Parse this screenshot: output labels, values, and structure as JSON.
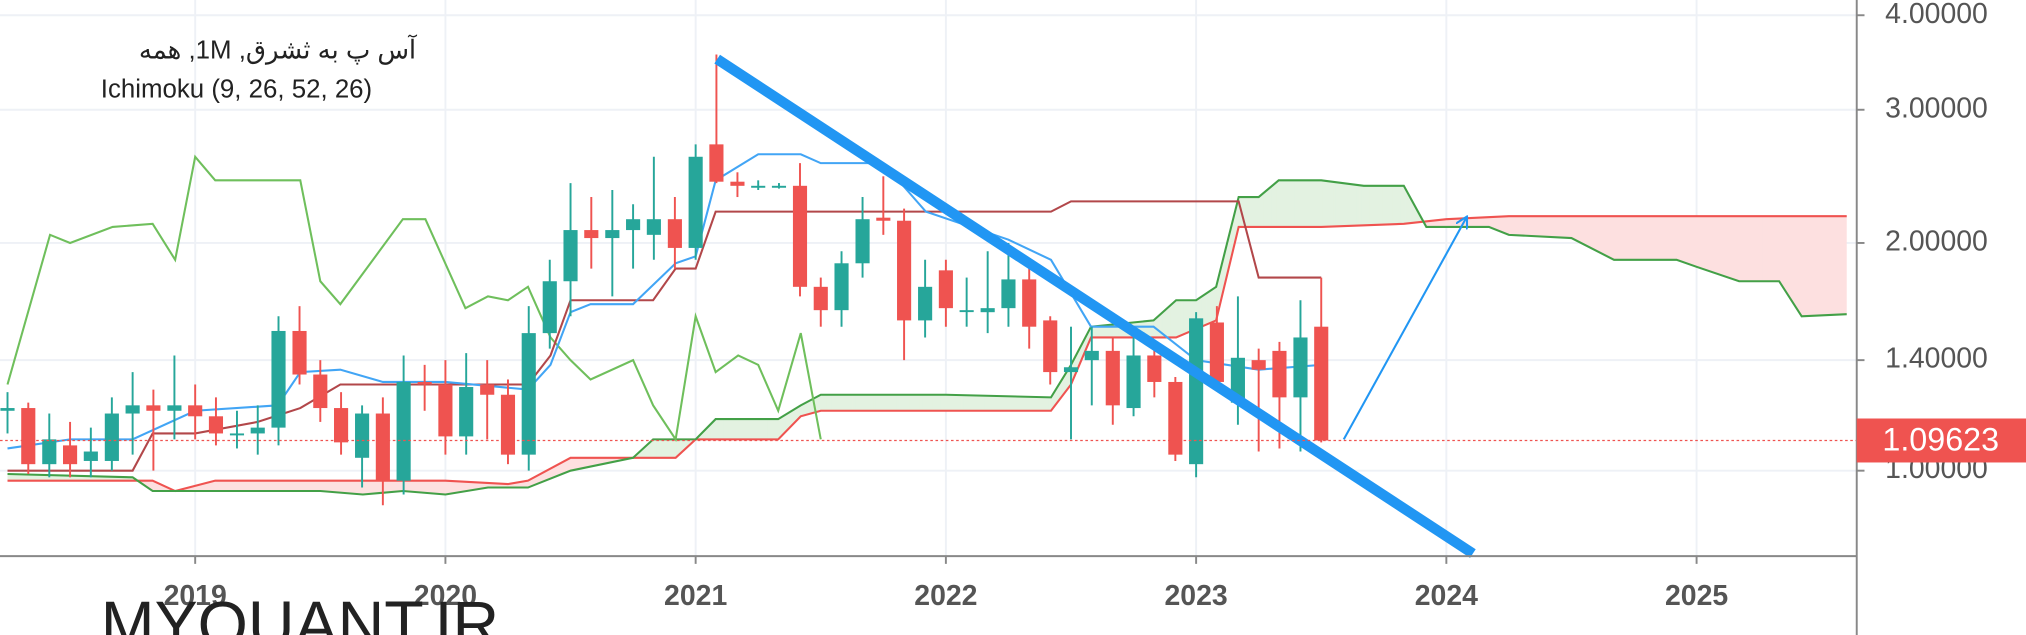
{
  "chart_data": {
    "type": "candlestick",
    "title": "آس پ به ثشرق, 1M, همه",
    "subtitle": "Ichimoku (9, 26, 52, 26)",
    "watermark": "MYQUANT.IR",
    "log_scale": true,
    "grid": true,
    "xlim": [
      2018.22,
      2025.64
    ],
    "xticks": [
      2019,
      2020,
      2021,
      2022,
      2023,
      2024,
      2025
    ],
    "ylim": [
      0.771,
      4.19
    ],
    "yticks": [
      {
        "value": 4,
        "label": "4.00000"
      },
      {
        "value": 3,
        "label": "3.00000"
      },
      {
        "value": 2,
        "label": "2.00000"
      },
      {
        "value": 1.4,
        "label": "1.40000"
      },
      {
        "value": 1,
        "label": "1.00000"
      }
    ],
    "up_color": "#26a69a",
    "down_color": "#ef5350",
    "x": [
      2018.25,
      2018.333,
      2018.417,
      2018.5,
      2018.583,
      2018.667,
      2018.75,
      2018.833,
      2018.917,
      2019,
      2019.083,
      2019.167,
      2019.25,
      2019.333,
      2019.417,
      2019.5,
      2019.583,
      2019.667,
      2019.75,
      2019.833,
      2019.917,
      2020,
      2020.083,
      2020.167,
      2020.25,
      2020.333,
      2020.417,
      2020.5,
      2020.583,
      2020.667,
      2020.75,
      2020.833,
      2020.917,
      2021,
      2021.083,
      2021.167,
      2021.25,
      2021.333,
      2021.417,
      2021.5,
      2021.583,
      2021.667,
      2021.75,
      2021.833,
      2021.917,
      2022,
      2022.083,
      2022.167,
      2022.25,
      2022.333,
      2022.417,
      2022.5,
      2022.583,
      2022.667,
      2022.75,
      2022.833,
      2022.917,
      2023,
      2023.083,
      2023.167,
      2023.25,
      2023.333,
      2023.417,
      2023.5
    ],
    "open": [
      1.2,
      1.21,
      1.02,
      1.08,
      1.03,
      1.03,
      1.19,
      1.22,
      1.2,
      1.22,
      1.18,
      1.12,
      1.12,
      1.14,
      1.53,
      1.34,
      1.21,
      1.04,
      1.19,
      0.97,
      1.31,
      1.3,
      1.11,
      1.3,
      1.26,
      1.05,
      1.52,
      1.78,
      2.08,
      2.03,
      2.08,
      2.05,
      2.15,
      1.97,
      2.7,
      2.41,
      2.38,
      2.38,
      2.38,
      1.75,
      1.63,
      1.88,
      2.16,
      2.14,
      1.58,
      1.84,
      1.63,
      1.62,
      1.64,
      1.79,
      1.58,
      1.35,
      1.4,
      1.44,
      1.21,
      1.42,
      1.31,
      1.02,
      1.57,
      1.23,
      1.4,
      1.44,
      1.25,
      1.55
    ],
    "high": [
      1.27,
      1.23,
      1.19,
      1.16,
      1.14,
      1.25,
      1.35,
      1.28,
      1.42,
      1.3,
      1.25,
      1.2,
      1.22,
      1.6,
      1.65,
      1.4,
      1.27,
      1.22,
      1.25,
      1.42,
      1.38,
      1.4,
      1.43,
      1.4,
      1.32,
      1.65,
      1.9,
      2.4,
      2.3,
      2.35,
      2.25,
      2.6,
      2.3,
      2.7,
      3.55,
      2.48,
      2.42,
      2.4,
      2.55,
      1.8,
      1.95,
      2.3,
      2.45,
      2.22,
      1.9,
      1.9,
      1.8,
      1.95,
      2.0,
      1.9,
      1.6,
      1.55,
      1.55,
      1.5,
      1.5,
      1.48,
      1.33,
      1.62,
      1.65,
      1.7,
      1.45,
      1.48,
      1.68,
      1.8
    ],
    "low": [
      1.12,
      0.99,
      0.98,
      0.98,
      0.98,
      1.0,
      1.05,
      1.0,
      1.1,
      1.1,
      1.08,
      1.07,
      1.05,
      1.08,
      1.3,
      1.16,
      1.05,
      0.95,
      0.9,
      0.93,
      1.2,
      1.05,
      1.05,
      1.1,
      1.02,
      1.0,
      1.45,
      1.6,
      1.85,
      1.7,
      1.85,
      1.9,
      1.85,
      1.9,
      2.4,
      2.3,
      2.35,
      2.36,
      1.7,
      1.55,
      1.55,
      1.8,
      2.05,
      1.4,
      1.5,
      1.55,
      1.55,
      1.52,
      1.55,
      1.45,
      1.3,
      1.1,
      1.22,
      1.15,
      1.18,
      1.25,
      1.03,
      0.98,
      1.28,
      1.15,
      1.06,
      1.07,
      1.06,
      1.09
    ],
    "close": [
      1.21,
      1.02,
      1.1,
      1.02,
      1.06,
      1.19,
      1.22,
      1.2,
      1.22,
      1.18,
      1.12,
      1.12,
      1.14,
      1.53,
      1.34,
      1.21,
      1.09,
      1.19,
      0.97,
      1.31,
      1.3,
      1.11,
      1.29,
      1.26,
      1.05,
      1.52,
      1.78,
      2.08,
      2.03,
      2.08,
      2.15,
      2.15,
      1.97,
      2.6,
      2.41,
      2.38,
      2.38,
      2.38,
      1.75,
      1.63,
      1.88,
      2.15,
      2.14,
      1.58,
      1.75,
      1.64,
      1.63,
      1.64,
      1.79,
      1.55,
      1.35,
      1.37,
      1.44,
      1.22,
      1.42,
      1.31,
      1.05,
      1.59,
      1.31,
      1.41,
      1.36,
      1.25,
      1.5,
      1.09623
    ],
    "ichimoku": {
      "conversion": {
        "color": "#42a5f5",
        "x": [
          2018.25,
          2018.5,
          2018.75,
          2019.0,
          2019.33,
          2019.42,
          2019.58,
          2019.75,
          2020.0,
          2020.33,
          2020.42,
          2020.5,
          2020.58,
          2020.75,
          2020.92,
          2021.0,
          2021.08,
          2021.25,
          2021.42,
          2021.5,
          2021.75,
          2021.92,
          2022.25,
          2022.42,
          2022.58,
          2022.83,
          2023.0,
          2023.25,
          2023.5
        ],
        "values": [
          1.07,
          1.1,
          1.1,
          1.2,
          1.22,
          1.35,
          1.36,
          1.31,
          1.31,
          1.28,
          1.38,
          1.62,
          1.66,
          1.66,
          1.88,
          1.92,
          2.42,
          2.62,
          2.62,
          2.55,
          2.55,
          2.2,
          2.02,
          1.9,
          1.55,
          1.55,
          1.4,
          1.36,
          1.38
        ]
      },
      "base": {
        "color": "#b2474a",
        "x": [
          2018.25,
          2018.75,
          2018.83,
          2019.0,
          2019.25,
          2019.42,
          2019.58,
          2020.33,
          2020.42,
          2020.5,
          2020.83,
          2020.92,
          2021.0,
          2021.08,
          2022.42,
          2022.5,
          2023.17,
          2023.25,
          2023.5
        ],
        "values": [
          1.0,
          1.0,
          1.12,
          1.12,
          1.16,
          1.21,
          1.3,
          1.3,
          1.42,
          1.68,
          1.68,
          1.85,
          1.85,
          2.2,
          2.2,
          2.27,
          2.27,
          1.8,
          1.8
        ]
      },
      "lagging": {
        "color": "#6fbf5c",
        "x": [
          2018.25,
          2018.42,
          2018.5,
          2018.67,
          2018.83,
          2018.92,
          2019.0,
          2019.08,
          2019.25,
          2019.42,
          2019.5,
          2019.58,
          2019.83,
          2019.92,
          2020.08,
          2020.17,
          2020.25,
          2020.33,
          2020.42,
          2020.5,
          2020.58,
          2020.75,
          2020.83,
          2020.92,
          2021.0,
          2021.08,
          2021.17,
          2021.25,
          2021.33,
          2021.42,
          2021.5
        ],
        "values": [
          1.3,
          2.05,
          2.0,
          2.1,
          2.12,
          1.9,
          2.6,
          2.42,
          2.42,
          2.42,
          1.78,
          1.66,
          2.15,
          2.15,
          1.64,
          1.7,
          1.68,
          1.75,
          1.5,
          1.4,
          1.32,
          1.4,
          1.22,
          1.1,
          1.6,
          1.35,
          1.42,
          1.38,
          1.2,
          1.52,
          1.1
        ]
      },
      "span_a": {
        "color": "#43a047",
        "x": [
          2018.25,
          2018.75,
          2018.83,
          2019.0,
          2019.5,
          2019.67,
          2019.83,
          2020.0,
          2020.17,
          2020.33,
          2020.5,
          2020.75,
          2020.83,
          2021.0,
          2021.08,
          2021.33,
          2021.42,
          2021.5,
          2022.0,
          2022.42,
          2022.5,
          2022.58,
          2022.83,
          2022.92,
          2023.0,
          2023.08,
          2023.17,
          2023.25,
          2023.33,
          2023.5,
          2023.67,
          2023.83,
          2023.92,
          2024.17,
          2024.25,
          2024.5,
          2024.67,
          2024.92,
          2025.0,
          2025.17,
          2025.33,
          2025.42,
          2025.6
        ],
        "values": [
          0.99,
          0.98,
          0.94,
          0.94,
          0.94,
          0.93,
          0.94,
          0.93,
          0.95,
          0.95,
          1.0,
          1.04,
          1.1,
          1.1,
          1.17,
          1.17,
          1.22,
          1.26,
          1.26,
          1.25,
          1.38,
          1.55,
          1.58,
          1.68,
          1.68,
          1.75,
          2.3,
          2.3,
          2.42,
          2.42,
          2.38,
          2.38,
          2.1,
          2.1,
          2.05,
          2.03,
          1.9,
          1.9,
          1.86,
          1.78,
          1.78,
          1.6,
          1.61
        ]
      },
      "span_b": {
        "color": "#ef5350",
        "x": [
          2018.25,
          2018.83,
          2018.92,
          2019.08,
          2020.0,
          2020.25,
          2020.33,
          2020.5,
          2020.92,
          2021.0,
          2021.33,
          2021.42,
          2021.5,
          2022.42,
          2022.5,
          2022.58,
          2022.92,
          2023.08,
          2023.17,
          2023.5,
          2023.83,
          2024.0,
          2024.25,
          2025.6
        ],
        "values": [
          0.97,
          0.97,
          0.94,
          0.97,
          0.97,
          0.96,
          0.97,
          1.04,
          1.04,
          1.1,
          1.1,
          1.18,
          1.2,
          1.2,
          1.3,
          1.5,
          1.5,
          1.58,
          2.1,
          2.1,
          2.12,
          2.15,
          2.17,
          2.17
        ]
      },
      "cloud_up_color": "#e3f2e1",
      "cloud_down_color": "#fde0e0"
    },
    "drawings": [
      {
        "color": "#2196f3",
        "x": [
          2021.086,
          2024.106
        ],
        "values": [
          3.5,
          0.777
        ]
      },
      {
        "color": "#2196f3",
        "x": [
          2023.59,
          2024.08
        ],
        "values": [
          1.1,
          2.16
        ],
        "arrow": true
      }
    ],
    "last_price": {
      "value": 1.09623,
      "color": "#ef5350"
    }
  }
}
